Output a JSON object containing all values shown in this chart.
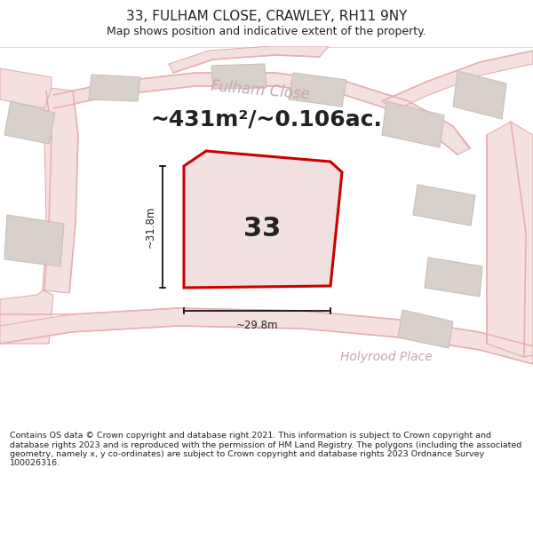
{
  "title": "33, FULHAM CLOSE, CRAWLEY, RH11 9NY",
  "subtitle": "Map shows position and indicative extent of the property.",
  "area_text": "~431m²/~0.106ac.",
  "number_label": "33",
  "dim_height": "~31.8m",
  "dim_width": "~29.8m",
  "street_label_1": "Fulham Close",
  "street_label_2": "Holyrood Place",
  "footer": "Contains OS data © Crown copyright and database right 2021. This information is subject to Crown copyright and database rights 2023 and is reproduced with the permission of HM Land Registry. The polygons (including the associated geometry, namely x, y co-ordinates) are subject to Crown copyright and database rights 2023 Ordnance Survey 100026316.",
  "map_bg": "#ede8e5",
  "plot_color": "#cc0000",
  "plot_fill": "#f0e0e0",
  "building_fill": "#d8d0ca",
  "building_edge": "#c8c0ba",
  "road_fill": "#f5e0e0",
  "road_edge": "#e0a8a8",
  "road_line": "#e8b0b0",
  "white": "#ffffff",
  "text_dark": "#222222",
  "text_road": "#c8a8a8",
  "footer_fontsize": 6.8,
  "header_title_fontsize": 11,
  "header_sub_fontsize": 9,
  "area_fontsize": 18,
  "number_fontsize": 22,
  "dim_fontsize": 8.5,
  "street_fontsize": 12
}
